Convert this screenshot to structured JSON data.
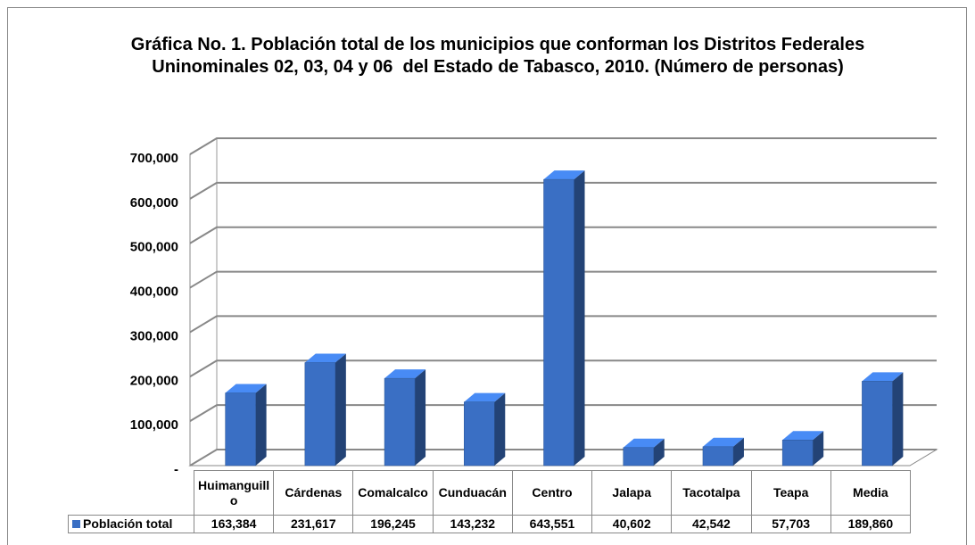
{
  "chart_data": {
    "type": "bar3d",
    "title": "Gráfica No. 1. Población total de los municipios que conforman los Distritos Federales Uninominales 02, 03, 04 y 06  del Estado de Tabasco, 2010. (Número de personas)",
    "categories": [
      "Huimanguillo",
      "Cárdenas",
      "Comalcalco",
      "Cunduacán",
      "Centro",
      "Jalapa",
      "Tacotalpa",
      "Teapa",
      "Media"
    ],
    "series": [
      {
        "name": "Población total",
        "color": "#3a6fc4",
        "values": [
          163384,
          231617,
          196245,
          143232,
          643551,
          40602,
          42542,
          57703,
          189860
        ],
        "value_labels": [
          "163,384",
          "231,617",
          "196,245",
          "143,232",
          "643,551",
          "40,602",
          "42,542",
          "57,703",
          "189,860"
        ]
      }
    ],
    "ylim": [
      0,
      700000
    ],
    "yticks": [
      {
        "value": 0,
        "label": "-"
      },
      {
        "value": 100000,
        "label": "100,000"
      },
      {
        "value": 200000,
        "label": "200,000"
      },
      {
        "value": 300000,
        "label": "300,000"
      },
      {
        "value": 400000,
        "label": "400,000"
      },
      {
        "value": 500000,
        "label": "500,000"
      },
      {
        "value": 600000,
        "label": "600,000"
      },
      {
        "value": 700000,
        "label": "700,000"
      }
    ],
    "grid": true
  }
}
